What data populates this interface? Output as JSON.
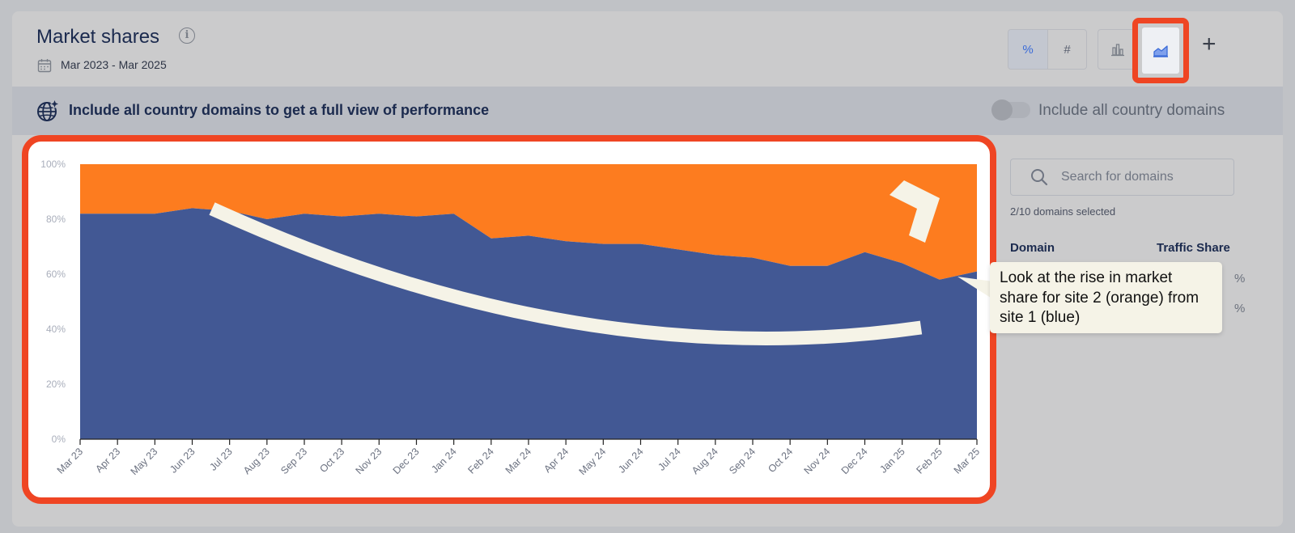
{
  "header": {
    "title": "Market shares",
    "date_range": "Mar 2023 - Mar 2025",
    "toggle_percent": "%",
    "toggle_count": "#"
  },
  "banner": {
    "text": "Include all country domains to get a full view of performance",
    "toggle_label": "Include all country domains"
  },
  "sidebar": {
    "search_placeholder": "Search for domains",
    "selected_text": "2/10 domains selected",
    "col_domain": "Domain",
    "col_share": "Traffic Share",
    "peek_1": "%",
    "peek_2": "%"
  },
  "annotation": "Look at the rise in market share for site 2 (orange) from site 1 (blue)",
  "colors": {
    "site1": "#425894",
    "site2": "#fd7c1f",
    "highlight": "#ef4523",
    "arrow": "#f5f3e7"
  },
  "chart_data": {
    "type": "area",
    "stacked": "percent",
    "x": [
      "Mar 23",
      "Apr 23",
      "May 23",
      "Jun 23",
      "Jul 23",
      "Aug 23",
      "Sep 23",
      "Oct 23",
      "Nov 23",
      "Dec 23",
      "Jan 24",
      "Feb 24",
      "Mar 24",
      "Apr 24",
      "May 24",
      "Jun 24",
      "Jul 24",
      "Aug 24",
      "Sep 24",
      "Oct 24",
      "Nov 24",
      "Dec 24",
      "Jan 25",
      "Feb 25",
      "Mar 25"
    ],
    "series": [
      {
        "values": [
          82,
          82,
          82,
          84,
          83,
          80,
          82,
          81,
          82,
          81,
          82,
          73,
          74,
          72,
          71,
          71,
          69,
          67,
          66,
          63,
          63,
          68,
          64,
          58,
          61
        ]
      },
      {
        "values": [
          18,
          18,
          18,
          16,
          17,
          20,
          18,
          19,
          18,
          19,
          18,
          27,
          26,
          28,
          29,
          29,
          31,
          33,
          34,
          37,
          37,
          32,
          36,
          42,
          39
        ]
      }
    ],
    "ylim": [
      0,
      100
    ],
    "yticks": [
      "0%",
      "20%",
      "40%",
      "60%",
      "80%",
      "100%"
    ],
    "grid": false
  }
}
